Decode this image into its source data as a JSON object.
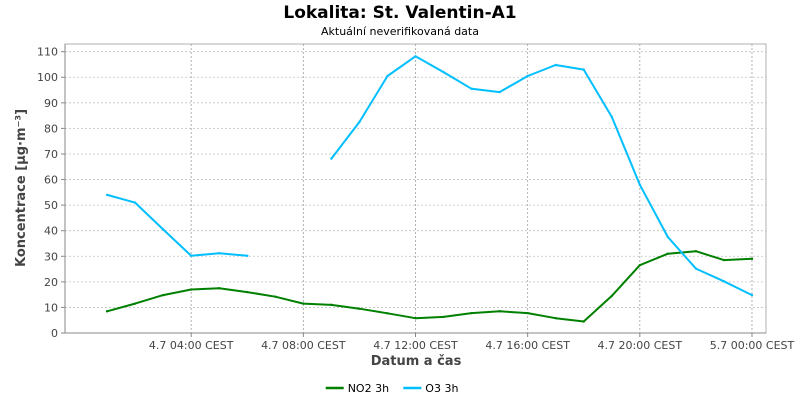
{
  "chart_data": {
    "type": "line",
    "title": "Lokalita: St. Valentin-A1",
    "subtitle": "Aktuální neverifikovaná data",
    "xlabel": "Datum a čas",
    "ylabel": "Koncentrace [µg·m⁻³]",
    "ylim": [
      0,
      113
    ],
    "xlim": [
      -1.5,
      23.5
    ],
    "x_tick_positions": [
      3,
      7,
      11,
      15,
      19,
      23
    ],
    "x_tick_labels": [
      "4.7 04:00 CEST",
      "4.7 08:00 CEST",
      "4.7 12:00 CEST",
      "4.7 16:00 CEST",
      "4.7 20:00 CEST",
      "5.7 00:00 CEST"
    ],
    "y_ticks": [
      0,
      10,
      20,
      30,
      40,
      50,
      60,
      70,
      80,
      90,
      100,
      110
    ],
    "grid": true,
    "legend_position": "bottom",
    "x": [
      0,
      1,
      2,
      3,
      4,
      5,
      6,
      7,
      8,
      9,
      10,
      11,
      12,
      13,
      14,
      15,
      16,
      17,
      18,
      19,
      20,
      21,
      22,
      23
    ],
    "series": [
      {
        "name": "NO2 3h",
        "color": "#008000",
        "values": [
          8.5,
          11.5,
          14.8,
          17.0,
          17.5,
          16.0,
          14.2,
          11.5,
          11.0,
          9.5,
          7.7,
          5.8,
          6.3,
          7.8,
          8.5,
          7.8,
          5.8,
          4.5,
          14.5,
          26.5,
          31.0,
          32.0,
          28.5,
          29.0
        ]
      },
      {
        "name": "O3 3h",
        "color": "#00bfff",
        "values": [
          54.0,
          51.0,
          40.5,
          30.2,
          31.2,
          30.2,
          null,
          null,
          68.2,
          82.5,
          100.5,
          108.2,
          102.0,
          95.5,
          94.2,
          100.5,
          104.8,
          103.0,
          84.5,
          58.0,
          37.5,
          25.2,
          20.2,
          14.8
        ]
      }
    ]
  }
}
